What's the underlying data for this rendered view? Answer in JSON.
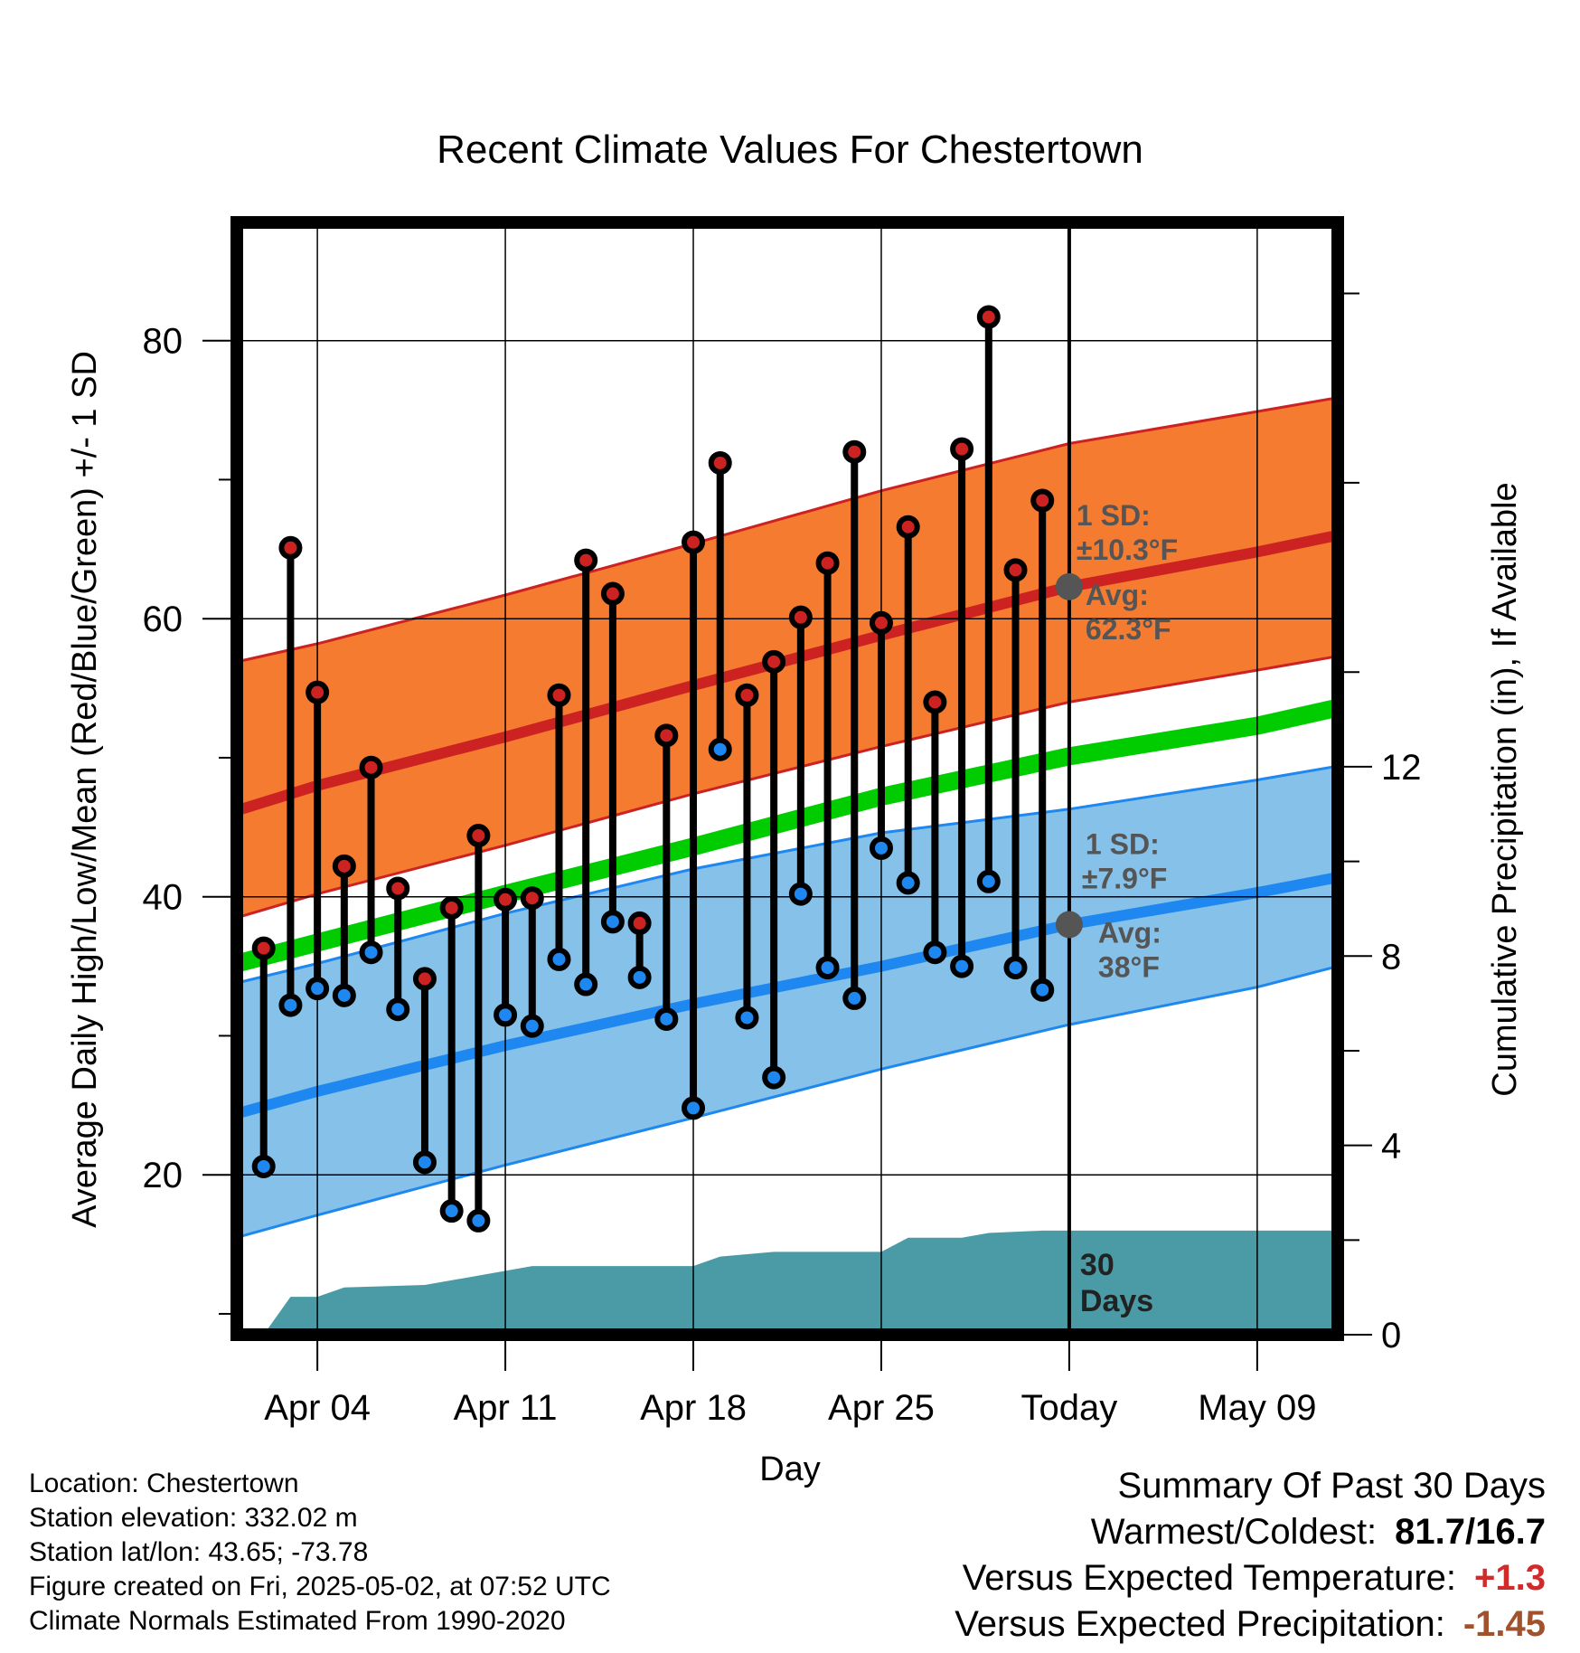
{
  "chart_data": {
    "type": "line",
    "title": "Recent Climate Values For Chestertown",
    "xlabel": "Day",
    "ylabel": "Average Daily High/Low/Mean (Red/Blue/Green) +/- 1 SD",
    "y2label": "Cumulative Precipitation (in), If Available",
    "xlim": [
      "2025-04-01",
      "2025-05-12"
    ],
    "ylim": [
      8.5,
      88.5
    ],
    "y2lim": [
      0,
      23.5
    ],
    "x_ticks": [
      {
        "date": "2025-04-04",
        "label": "Apr 04"
      },
      {
        "date": "2025-04-11",
        "label": "Apr 11"
      },
      {
        "date": "2025-04-18",
        "label": "Apr 18"
      },
      {
        "date": "2025-04-25",
        "label": "Apr 25"
      },
      {
        "date": "2025-05-02",
        "label": "Today"
      },
      {
        "date": "2025-05-09",
        "label": "May 09"
      }
    ],
    "y_ticks": [
      20,
      40,
      60,
      80
    ],
    "y2_ticks": [
      0,
      4,
      8,
      12
    ],
    "grid": true,
    "today": "2025-05-02",
    "days": [
      "2025-04-02",
      "2025-04-03",
      "2025-04-04",
      "2025-04-05",
      "2025-04-06",
      "2025-04-07",
      "2025-04-08",
      "2025-04-09",
      "2025-04-10",
      "2025-04-11",
      "2025-04-12",
      "2025-04-13",
      "2025-04-14",
      "2025-04-15",
      "2025-04-16",
      "2025-04-17",
      "2025-04-18",
      "2025-04-19",
      "2025-04-20",
      "2025-04-21",
      "2025-04-22",
      "2025-04-23",
      "2025-04-24",
      "2025-04-25",
      "2025-04-26",
      "2025-04-27",
      "2025-04-28",
      "2025-04-29",
      "2025-04-30",
      "2025-05-01"
    ],
    "series": [
      {
        "name": "High",
        "values": [
          36.3,
          65.1,
          54.7,
          42.2,
          49.3,
          40.6,
          34.1,
          39.2,
          44.4,
          39.8,
          39.9,
          54.5,
          64.2,
          61.8,
          38.1,
          51.6,
          65.5,
          71.2,
          54.5,
          56.9,
          60.1,
          64,
          72,
          59.7,
          66.6,
          54,
          72.2,
          81.7,
          63.5,
          68.5
        ]
      },
      {
        "name": "Low",
        "values": [
          20.6,
          32.2,
          33.4,
          32.9,
          36,
          31.9,
          20.9,
          17.4,
          16.7,
          31.5,
          30.7,
          35.5,
          33.7,
          38.2,
          34.2,
          31.2,
          24.8,
          50.6,
          31.3,
          27,
          40.2,
          34.9,
          32.7,
          43.5,
          41,
          36,
          35,
          41.1,
          34.9,
          33.3
        ]
      }
    ],
    "normals": {
      "dates": [
        "2025-04-01",
        "2025-04-04",
        "2025-04-11",
        "2025-04-18",
        "2025-04-25",
        "2025-05-02",
        "2025-05-09",
        "2025-05-12"
      ],
      "high": [
        46.2,
        48,
        51.5,
        55.2,
        58.8,
        62.3,
        64.8,
        66
      ],
      "high_upper": [
        56.9,
        58.2,
        61.7,
        65.4,
        69.2,
        72.6,
        74.9,
        75.9
      ],
      "high_lower": [
        38.5,
        40.2,
        43.7,
        47.4,
        50.8,
        54,
        56.3,
        57.3
      ],
      "mean": [
        35.2,
        36.7,
        40.2,
        43.6,
        47.2,
        50.1,
        52.3,
        53.6
      ],
      "low": [
        24.4,
        26,
        29.3,
        32.3,
        35,
        38,
        40.3,
        41.4
      ],
      "low_upper": [
        33.8,
        35.2,
        38.8,
        42,
        44.6,
        46.3,
        48.4,
        49.4
      ],
      "low_lower": [
        15.5,
        17.1,
        20.7,
        24.1,
        27.6,
        30.8,
        33.5,
        35
      ]
    },
    "precip_cumulative": [
      {
        "date": "2025-04-01",
        "value": 0
      },
      {
        "date": "2025-04-02",
        "value": 0
      },
      {
        "date": "2025-04-03",
        "value": 0.8
      },
      {
        "date": "2025-04-04",
        "value": 0.8
      },
      {
        "date": "2025-04-05",
        "value": 1.0
      },
      {
        "date": "2025-04-08",
        "value": 1.05
      },
      {
        "date": "2025-04-10",
        "value": 1.25
      },
      {
        "date": "2025-04-12",
        "value": 1.45
      },
      {
        "date": "2025-04-18",
        "value": 1.45
      },
      {
        "date": "2025-04-19",
        "value": 1.65
      },
      {
        "date": "2025-04-21",
        "value": 1.75
      },
      {
        "date": "2025-04-25",
        "value": 1.75
      },
      {
        "date": "2025-04-26",
        "value": 2.05
      },
      {
        "date": "2025-04-28",
        "value": 2.05
      },
      {
        "date": "2025-04-29",
        "value": 2.15
      },
      {
        "date": "2025-05-01",
        "value": 2.2
      },
      {
        "date": "2025-05-12",
        "value": 2.2
      }
    ],
    "annotations": {
      "high_sd_line1": "1 SD:",
      "high_sd_line2": "±10.3°F",
      "high_avg_line1": "Avg:",
      "high_avg_line2": "62.3°F",
      "low_sd_line1": "1 SD:",
      "low_sd_line2": "±7.9°F",
      "low_avg_line1": "Avg:",
      "low_avg_line2": "38°F",
      "days_line1": "30",
      "days_line2": "Days"
    },
    "colors": {
      "high": "#cc2222",
      "high_band": "#f47b30",
      "low": "#1e88f0",
      "low_band": "#85c1e8",
      "mean": "#00cc00",
      "precip": "#4a9ba5",
      "avg_marker": "#555555"
    }
  },
  "info": {
    "location": "Location: Chestertown",
    "elevation": "Station elevation: 332.02 m",
    "latlon": "Station lat/lon: 43.65; -73.78",
    "created": "Figure created on Fri, 2025-05-02, at 07:52 UTC",
    "normals": "Climate Normals Estimated From 1990-2020"
  },
  "summary": {
    "heading": "Summary Of Past 30 Days",
    "warm_cold_label": "Warmest/Coldest:",
    "warm_cold_value": "81.7/16.7",
    "temp_label": "Versus Expected Temperature:",
    "temp_value": "+1.3",
    "precip_label": "Versus Expected Precipitation:",
    "precip_value": "-1.45"
  }
}
